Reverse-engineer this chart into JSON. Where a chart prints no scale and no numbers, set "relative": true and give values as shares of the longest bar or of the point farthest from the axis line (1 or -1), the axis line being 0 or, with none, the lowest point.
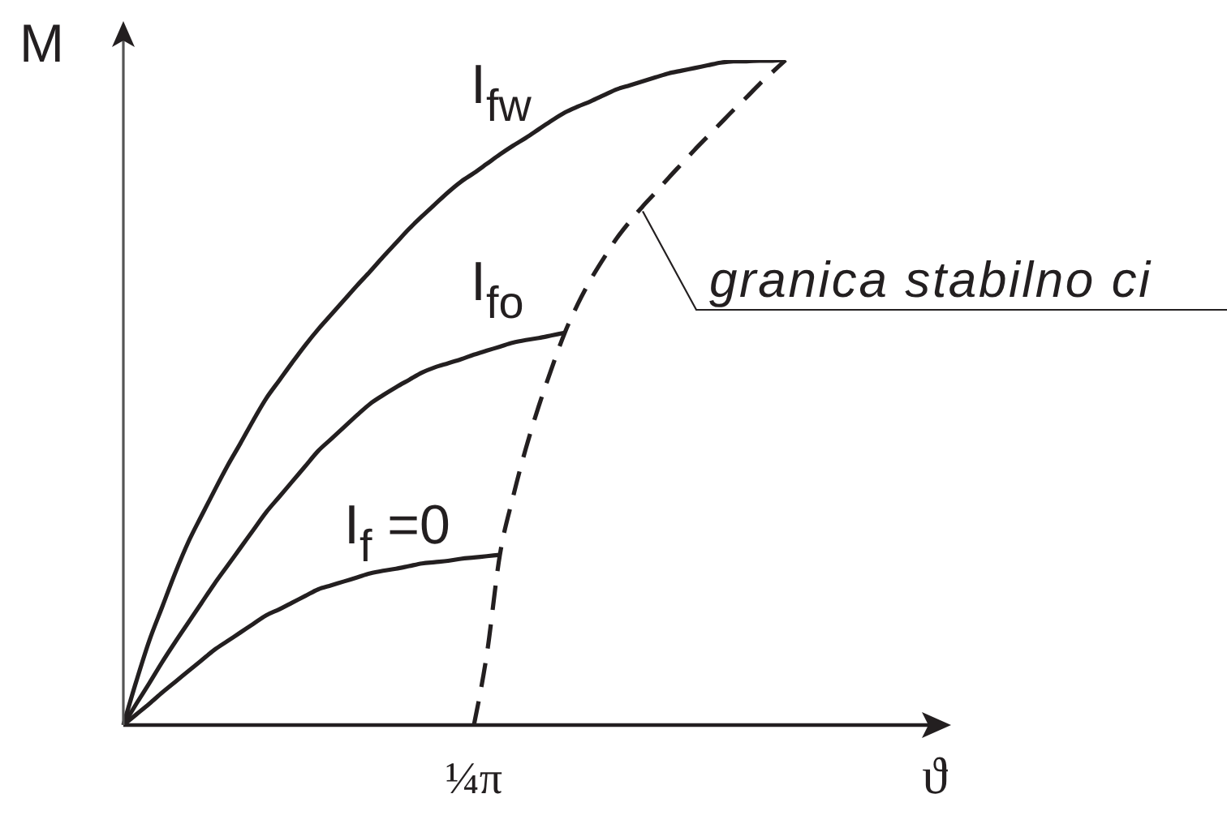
{
  "chart_data": {
    "type": "line",
    "xlabel": "ϑ",
    "ylabel": "M",
    "relative": true,
    "marker": "none",
    "annotations": [
      "¼π"
    ],
    "categories": [
      null,
      null,
      null,
      null,
      null,
      null,
      null,
      null,
      null,
      null,
      null,
      null,
      null,
      null,
      null,
      null,
      null,
      null,
      null,
      null,
      null,
      null,
      null,
      null,
      null,
      null,
      null,
      null,
      null,
      null,
      null,
      null,
      null,
      null,
      null,
      null,
      null,
      null,
      null,
      null,
      null,
      null,
      null,
      null,
      null,
      null,
      null,
      null,
      null,
      null,
      null,
      null
    ],
    "series": [
      {
        "name": "I$_{fw}$",
        "color": "#231f20",
        "line_style": "solid",
        "values": [
          0,
          0.066,
          0.127,
          0.178,
          0.229,
          0.275,
          0.314,
          0.352,
          0.389,
          0.423,
          0.458,
          0.491,
          0.518,
          0.545,
          0.571,
          0.595,
          0.617,
          0.639,
          0.661,
          0.682,
          0.704,
          0.725,
          0.746,
          0.765,
          0.783,
          0.801,
          0.817,
          0.83,
          0.844,
          0.858,
          0.871,
          0.883,
          0.896,
          0.909,
          0.921,
          0.93,
          0.938,
          0.947,
          0.956,
          0.962,
          0.968,
          0.974,
          0.98,
          0.984,
          0.988,
          0.992,
          0.996,
          0.998,
          0.998,
          0.999,
          0.999,
          1
        ]
      },
      {
        "name": "I$_{fo}$",
        "color": "#231f20",
        "line_style": "solid",
        "values": [
          0,
          0.032,
          0.063,
          0.095,
          0.125,
          0.154,
          0.183,
          0.212,
          0.239,
          0.266,
          0.293,
          0.32,
          0.343,
          0.366,
          0.389,
          0.412,
          0.43,
          0.448,
          0.466,
          0.483,
          0.496,
          0.508,
          0.519,
          0.53,
          0.538,
          0.544,
          0.55,
          0.557,
          0.563,
          0.569,
          0.575,
          0.579,
          0.582,
          0.586,
          0.59,
          null,
          null,
          null,
          null,
          null,
          null,
          null,
          null,
          null,
          null,
          null,
          null,
          null,
          null,
          null,
          null,
          null
        ]
      },
      {
        "name": "I$_{f}$ =0",
        "color": "#231f20",
        "line_style": "solid",
        "values": [
          0,
          0.016,
          0.032,
          0.049,
          0.065,
          0.081,
          0.097,
          0.113,
          0.126,
          0.139,
          0.152,
          0.165,
          0.174,
          0.184,
          0.194,
          0.204,
          0.21,
          0.216,
          0.222,
          0.228,
          0.232,
          0.235,
          0.239,
          0.243,
          0.245,
          0.247,
          0.25,
          0.252,
          0.254,
          0.256,
          null,
          null,
          null,
          null,
          null,
          null,
          null,
          null,
          null,
          null,
          null,
          null,
          null,
          null,
          null,
          null,
          null,
          null,
          null,
          null,
          null,
          null
        ]
      },
      {
        "name": "granica stabilno ci",
        "color": "#231f20",
        "line_style": "dashed",
        "values": [
          null,
          null,
          null,
          null,
          null,
          null,
          null,
          null,
          null,
          null,
          null,
          null,
          null,
          null,
          null,
          null,
          null,
          null,
          null,
          null,
          null,
          null,
          null,
          null,
          null,
          null,
          null,
          0,
          0.107,
          0.256,
          0.342,
          0.416,
          0.48,
          0.537,
          0.59,
          0.633,
          0.67,
          0.702,
          0.732,
          0.757,
          0.78,
          0.801,
          0.823,
          0.844,
          0.865,
          0.885,
          0.905,
          0.925,
          0.944,
          0.964,
          0.982,
          1
        ]
      }
    ]
  }
}
